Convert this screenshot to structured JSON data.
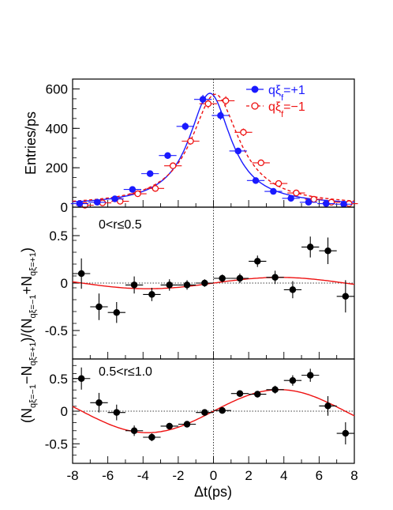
{
  "colors": {
    "blue": "#1a1aff",
    "red": "#ee1111",
    "black": "#000000"
  },
  "chart_data": [
    {
      "type": "scatter",
      "panel": "top",
      "ylabel": "Entries/ps",
      "xlim": [
        -8,
        8
      ],
      "ylim": [
        0,
        650
      ],
      "yticks": [
        0,
        200,
        400,
        600
      ],
      "legend_placement": "top-right",
      "series": [
        {
          "name": "qξf=+1",
          "legend_main": "qξ",
          "legend_sup": "ξ",
          "legend_sub": "f",
          "legend_rest": "=+1",
          "color": "blue",
          "marker": "filled-circle",
          "line": "solid",
          "x": [
            -7.5,
            -6.5,
            -5.5,
            -4.5,
            -3.5,
            -2.5,
            -1.5,
            -0.5,
            0.5,
            1.5,
            2.5,
            3.5,
            4.5,
            5.5,
            6.5,
            7.5
          ],
          "y": [
            18,
            25,
            42,
            90,
            170,
            262,
            410,
            547,
            465,
            285,
            135,
            80,
            45,
            25,
            18,
            15
          ],
          "yerr": [
            5,
            6,
            8,
            10,
            13,
            16,
            20,
            23,
            22,
            17,
            12,
            9,
            7,
            6,
            5,
            5
          ]
        },
        {
          "name": "qξf=−1",
          "legend_main": "qξ",
          "legend_sup": "ξ",
          "legend_sub": "f",
          "legend_rest": "=−1",
          "color": "red",
          "marker": "open-circle",
          "line": "dashed",
          "x": [
            -7.5,
            -6.5,
            -5.5,
            -4.5,
            -3.5,
            -2.5,
            -1.5,
            -0.5,
            0.5,
            1.5,
            2.5,
            3.5,
            4.5,
            5.5,
            6.5,
            7.5
          ],
          "y": [
            10,
            22,
            30,
            68,
            95,
            210,
            335,
            525,
            540,
            380,
            225,
            120,
            72,
            40,
            25,
            18
          ],
          "yerr": [
            4,
            6,
            7,
            9,
            10,
            14,
            18,
            23,
            23,
            19,
            15,
            11,
            9,
            7,
            5,
            5
          ]
        }
      ]
    },
    {
      "type": "scatter",
      "panel": "middle",
      "annotation": "0<r≤0.5",
      "xlim": [
        -8,
        8
      ],
      "ylim": [
        -0.8,
        0.8
      ],
      "yticks": [
        -0.5,
        0,
        0.5
      ],
      "x": [
        -7.5,
        -6.5,
        -5.5,
        -4.5,
        -3.5,
        -2.5,
        -1.5,
        -0.5,
        0.5,
        1.5,
        2.5,
        3.5,
        4.5,
        5.5,
        6.5,
        7.5
      ],
      "y": [
        0.1,
        -0.25,
        -0.31,
        -0.02,
        -0.12,
        -0.02,
        -0.02,
        0.0,
        0.05,
        0.05,
        0.23,
        0.06,
        -0.07,
        0.38,
        0.34,
        -0.14
      ],
      "yerr": [
        0.16,
        0.14,
        0.11,
        0.09,
        0.07,
        0.06,
        0.05,
        0.04,
        0.04,
        0.05,
        0.06,
        0.07,
        0.09,
        0.11,
        0.14,
        0.17
      ],
      "fit_amplitude": 0.06
    },
    {
      "type": "scatter",
      "panel": "bottom",
      "annotation": "0.5<r≤1.0",
      "xlabel": "Δt(ps)",
      "xlim": [
        -8,
        8
      ],
      "ylim": [
        -0.8,
        0.8
      ],
      "yticks": [
        -0.5,
        0,
        0.5
      ],
      "xticks": [
        -8,
        -6,
        -4,
        -2,
        0,
        2,
        4,
        6,
        8
      ],
      "x": [
        -7.5,
        -6.5,
        -5.5,
        -4.5,
        -3.5,
        -2.5,
        -1.5,
        -0.5,
        0.5,
        1.5,
        2.5,
        3.5,
        4.5,
        5.5,
        6.5,
        7.5
      ],
      "y": [
        0.5,
        0.13,
        -0.02,
        -0.3,
        -0.4,
        -0.23,
        -0.2,
        -0.02,
        0.01,
        0.27,
        0.26,
        0.33,
        0.47,
        0.55,
        0.08,
        -0.34
      ],
      "yerr": [
        0.17,
        0.15,
        0.12,
        0.08,
        0.06,
        0.05,
        0.04,
        0.04,
        0.04,
        0.04,
        0.05,
        0.06,
        0.08,
        0.1,
        0.15,
        0.17
      ],
      "fit_amplitude": 0.33
    }
  ],
  "shared_ylabel": {
    "prefix": "(N",
    "sub1": "qξ=−1",
    "mid1": "−N",
    "sub2": "qξ=+1",
    "mid2": ")/(N",
    "sub3": "qξ=−1",
    "mid3": "+N",
    "sub4": "qξ=+1",
    "suffix": ")"
  }
}
